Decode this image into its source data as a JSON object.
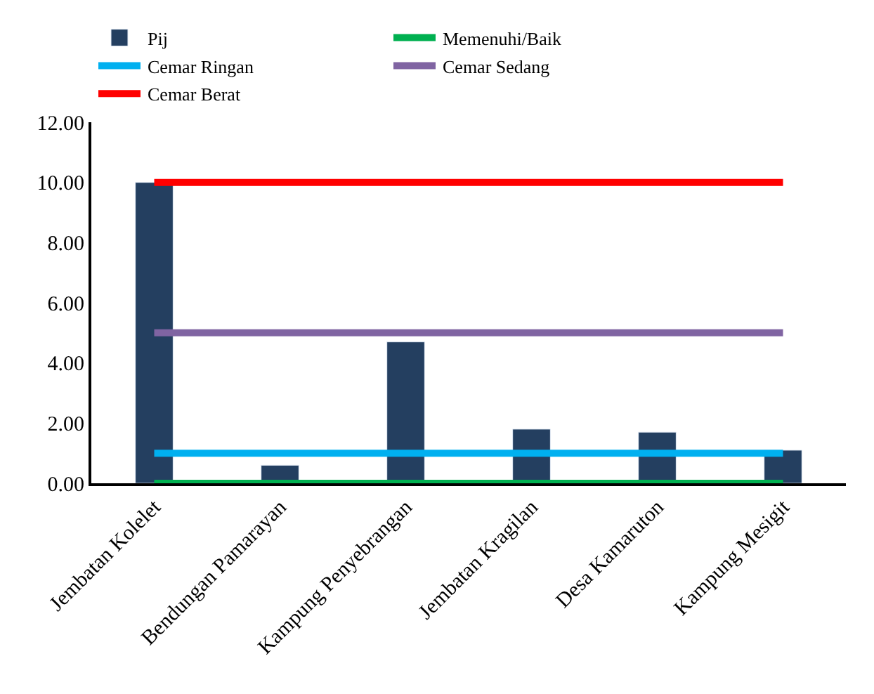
{
  "chart_data": {
    "type": "bar",
    "categories": [
      "Jembatan Kolelet",
      "Bendungan Pamarayan",
      "Kampung Penyebrangan",
      "Jembatan Kragilan",
      "Desa Kamaruton",
      "Kampung Mesigit"
    ],
    "series": [
      {
        "name": "Pij",
        "color": "#243f60",
        "values": [
          10.0,
          0.6,
          4.7,
          1.8,
          1.7,
          1.1
        ]
      },
      {
        "name": "Memenuhi/Baik",
        "type": "line",
        "color": "#00b050",
        "values": [
          0,
          0,
          0,
          0,
          0,
          0
        ]
      },
      {
        "name": "Cemar Ringan",
        "type": "line",
        "color": "#00b0f0",
        "values": [
          1,
          1,
          1,
          1,
          1,
          1
        ]
      },
      {
        "name": "Cemar Sedang",
        "type": "line",
        "color": "#8064a2",
        "values": [
          5,
          5,
          5,
          5,
          5,
          5
        ]
      },
      {
        "name": "Cemar Berat",
        "type": "line",
        "color": "#ff0000",
        "values": [
          10,
          10,
          10,
          10,
          10,
          10
        ]
      }
    ],
    "ylim": [
      0,
      12
    ],
    "yticks": [
      {
        "value": 0,
        "label": "0.00"
      },
      {
        "value": 2,
        "label": "2.00"
      },
      {
        "value": 4,
        "label": "4.00"
      },
      {
        "value": 6,
        "label": "6.00"
      },
      {
        "value": 8,
        "label": "8.00"
      },
      {
        "value": 10,
        "label": "10.00"
      },
      {
        "value": 12,
        "label": "12.00"
      }
    ],
    "legend": "top",
    "marker": "none",
    "line_style": "solid"
  }
}
